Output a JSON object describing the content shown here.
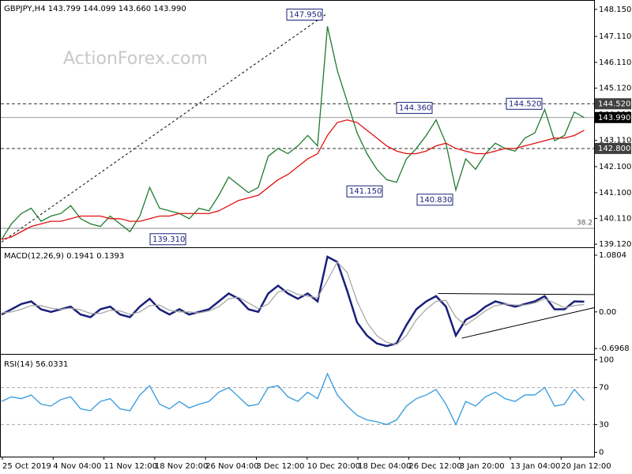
{
  "chart_data": [
    {
      "type": "line",
      "title": "GBPJPY,H4  143.799 144.099 143.660 143.990",
      "watermark": "ActionForex.com",
      "ylim": [
        139.0,
        148.45
      ],
      "yticks": [
        {
          "value": 139.12,
          "label": "139.120"
        },
        {
          "value": 140.11,
          "label": "140.110"
        },
        {
          "value": 141.1,
          "label": "141.100"
        },
        {
          "value": 142.1,
          "label": "142.100"
        },
        {
          "value": 143.11,
          "label": "143.110"
        },
        {
          "value": 144.11,
          "label": "144.110"
        },
        {
          "value": 145.12,
          "label": "145.120"
        },
        {
          "value": 146.11,
          "label": "146.110"
        },
        {
          "value": 147.11,
          "label": "147.110"
        },
        {
          "value": 148.15,
          "label": "148.150"
        }
      ],
      "series": [
        {
          "color": "#1f7a2e",
          "values": [
            139.3,
            139.9,
            140.3,
            140.5,
            140.0,
            140.2,
            140.3,
            140.6,
            140.1,
            139.9,
            139.8,
            140.2,
            139.9,
            139.6,
            140.2,
            141.3,
            140.5,
            140.4,
            140.3,
            140.1,
            140.5,
            140.4,
            141.0,
            141.7,
            141.4,
            141.1,
            141.3,
            142.5,
            142.8,
            142.6,
            142.9,
            143.3,
            142.9,
            147.5,
            145.8,
            144.6,
            143.4,
            142.6,
            142.0,
            141.6,
            141.5,
            142.4,
            142.8,
            143.3,
            143.9,
            143.0,
            141.2,
            142.4,
            142.0,
            142.6,
            143.0,
            142.8,
            142.7,
            143.2,
            143.4,
            144.3,
            143.1,
            143.3,
            144.2,
            143.99
          ]
        },
        {
          "color": "#e01010",
          "values": [
            139.3,
            139.4,
            139.6,
            139.8,
            139.9,
            140.0,
            140.0,
            140.1,
            140.2,
            140.2,
            140.2,
            140.1,
            140.1,
            140.0,
            140.0,
            140.1,
            140.2,
            140.2,
            140.3,
            140.3,
            140.3,
            140.3,
            140.4,
            140.6,
            140.8,
            140.9,
            141.0,
            141.3,
            141.6,
            141.8,
            142.1,
            142.4,
            142.6,
            143.3,
            143.8,
            143.9,
            143.8,
            143.5,
            143.2,
            142.9,
            142.7,
            142.6,
            142.6,
            142.7,
            142.9,
            143.0,
            142.8,
            142.7,
            142.6,
            142.6,
            142.7,
            142.8,
            142.8,
            142.9,
            143.0,
            143.1,
            143.2,
            143.2,
            143.3,
            143.5
          ]
        }
      ],
      "annotations": [
        {
          "value": 147.95,
          "label": "147.950"
        },
        {
          "value": 144.36,
          "label": "144.360"
        },
        {
          "value": 144.52,
          "label": "144.520"
        },
        {
          "value": 141.15,
          "label": "141.150"
        },
        {
          "value": 140.83,
          "label": "140.830"
        },
        {
          "value": 139.31,
          "label": "139.310"
        }
      ],
      "levels": [
        {
          "value": 144.52,
          "label": "144.520",
          "style": "dashed",
          "color": "#404040"
        },
        {
          "value": 143.99,
          "label": "143.990",
          "style": "solid",
          "color": "#000000"
        },
        {
          "value": 142.8,
          "label": "142.800",
          "style": "dashed",
          "color": "#404040"
        }
      ],
      "fib_level": {
        "value": 139.73,
        "label": "38.2"
      },
      "trendlines": [
        {
          "from": [
            0,
            139.2
          ],
          "to": [
            33,
            148.0
          ]
        }
      ]
    },
    {
      "type": "line",
      "title": "MACD(12,26,9) 0.1941 0.1393",
      "ylim": [
        -0.8,
        1.2
      ],
      "yticks": [
        -0.6968,
        {
          "value": 0,
          "label": "0.00"
        },
        1.0804
      ],
      "series": [
        {
          "color": "#1a1f7a",
          "values": [
            -0.05,
            0.05,
            0.15,
            0.2,
            0.05,
            0.0,
            0.05,
            0.1,
            -0.05,
            -0.1,
            0.05,
            0.1,
            -0.05,
            -0.1,
            0.1,
            0.25,
            0.05,
            -0.05,
            0.05,
            -0.05,
            0.0,
            0.05,
            0.2,
            0.35,
            0.25,
            0.05,
            0.0,
            0.35,
            0.5,
            0.35,
            0.25,
            0.35,
            0.2,
            1.05,
            0.95,
            0.4,
            -0.2,
            -0.45,
            -0.6,
            -0.65,
            -0.6,
            -0.25,
            0.05,
            0.2,
            0.3,
            0.1,
            -0.45,
            -0.15,
            -0.05,
            0.1,
            0.2,
            0.15,
            0.1,
            0.15,
            0.2,
            0.3,
            0.05,
            0.05,
            0.2,
            0.1941
          ]
        },
        {
          "color": "#a8a8a8",
          "values": [
            -0.02,
            0.0,
            0.05,
            0.12,
            0.12,
            0.07,
            0.05,
            0.07,
            0.04,
            -0.03,
            -0.03,
            0.03,
            0.02,
            -0.05,
            0.0,
            0.12,
            0.13,
            0.03,
            0.0,
            0.0,
            -0.02,
            0.02,
            0.1,
            0.25,
            0.28,
            0.17,
            0.06,
            0.15,
            0.38,
            0.42,
            0.33,
            0.3,
            0.27,
            0.6,
            0.95,
            0.75,
            0.2,
            -0.2,
            -0.45,
            -0.58,
            -0.62,
            -0.45,
            -0.15,
            0.05,
            0.2,
            0.22,
            -0.1,
            -0.25,
            -0.12,
            0.02,
            0.12,
            0.15,
            0.13,
            0.13,
            0.17,
            0.25,
            0.17,
            0.08,
            0.12,
            0.1393
          ]
        }
      ],
      "trendlines": [
        {
          "from": [
            44.2,
            0.35
          ],
          "to": [
            60,
            0.33
          ]
        },
        {
          "from": [
            46.6,
            -0.5
          ],
          "to": [
            60,
            0.08
          ]
        }
      ]
    },
    {
      "type": "line",
      "title": "RSI(14) 56.0331",
      "ylim": [
        -3,
        103
      ],
      "yticks": [
        0,
        30,
        70,
        100
      ],
      "levels": [
        30,
        70
      ],
      "series": [
        {
          "color": "#3399dd",
          "values": [
            55,
            60,
            58,
            62,
            52,
            50,
            57,
            60,
            47,
            45,
            55,
            58,
            47,
            45,
            62,
            72,
            52,
            47,
            55,
            48,
            52,
            55,
            65,
            70,
            60,
            50,
            52,
            70,
            72,
            60,
            55,
            65,
            58,
            85,
            62,
            50,
            40,
            35,
            33,
            30,
            35,
            50,
            58,
            62,
            68,
            52,
            30,
            55,
            50,
            60,
            65,
            58,
            55,
            62,
            62,
            70,
            50,
            52,
            68,
            56.0331
          ]
        }
      ],
      "x_labels": [
        "25 Oct 2019",
        "4 Nov 04:00",
        "11 Nov 12:00",
        "18 Nov 20:00",
        "26 Nov 04:00",
        "3 Dec 12:00",
        "10 Dec 20:00",
        "18 Dec 04:00",
        "26 Dec 12:00",
        "3 Jan 20:00",
        "13 Jan 04:00",
        "20 Jan 12:00"
      ]
    }
  ]
}
